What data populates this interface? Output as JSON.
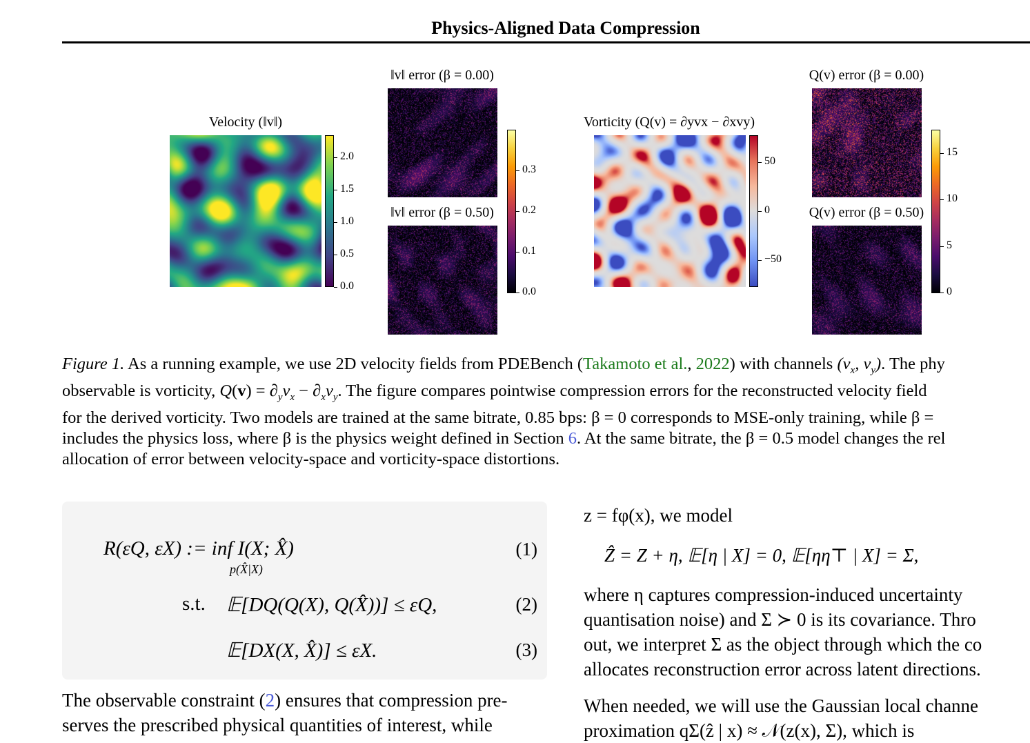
{
  "header": {
    "title": "Physics-Aligned Data Compression"
  },
  "figure": {
    "panels": {
      "velocity": {
        "title": "Velocity (‖v‖)",
        "colormap": "viridis",
        "ticks": [
          "2.0",
          "1.5",
          "1.0",
          "0.5",
          "0.0"
        ]
      },
      "v_err_0": {
        "title": "‖v‖ error (β = 0.00)",
        "colormap": "inferno"
      },
      "v_err_5": {
        "title": "‖v‖ error (β = 0.50)",
        "colormap": "inferno"
      },
      "v_err_ticks": [
        "0.3",
        "0.2",
        "0.1",
        "0.0"
      ],
      "vorticity": {
        "title": "Vorticity (Q(v) = ∂yvx − ∂xvy)",
        "colormap": "coolwarm",
        "ticks": [
          "50",
          "0",
          "−50"
        ]
      },
      "q_err_0": {
        "title": "Q(v) error (β = 0.00)",
        "colormap": "inferno"
      },
      "q_err_5": {
        "title": "Q(v) error (β = 0.50)",
        "colormap": "inferno"
      },
      "q_err_ticks": [
        "15",
        "10",
        "5",
        "0"
      ]
    },
    "colors": {
      "viridis_hi": "#fde725",
      "viridis_lo": "#440154",
      "inferno_hi": "#fcffa4",
      "inferno_lo": "#000004",
      "coolwarm_hi": "#b40426",
      "coolwarm_lo": "#3b4cc0"
    }
  },
  "caption": {
    "label": "Figure 1.",
    "lines": [
      " As a running example, we use 2D velocity fields from PDEBench (",
      "Takamoto et al.",
      ", ",
      "2022",
      ") with channels (v",
      "observable is vorticity, Q(v) = ∂",
      ". The figure compares pointwise compression errors for the reconstructed velocity field",
      "for the derived vorticity. Two models are trained at the same bitrate, 0.85 bps: β = 0 corresponds to MSE-only training, while β =",
      "includes the physics loss, where β is the physics weight defined in Section ",
      "6",
      ". At the same bitrate, the β = 0.5 model changes the rel",
      "allocation of error between velocity-space and vorticity-space distortions."
    ]
  },
  "equations": {
    "eq1": "R(εQ, εX) := inf I(X; X̂)",
    "eq1_sub": "p(X̂|X)",
    "eq2_prefix": "s.t.",
    "eq2": "𝔼[DQ(Q(X), Q(X̂))] ≤ εQ,",
    "eq3": "𝔼[DX(X, X̂)] ≤ εX.",
    "nums": [
      "(1)",
      "(2)",
      "(3)"
    ]
  },
  "body_left": {
    "line1a": "The observable constraint (",
    "line1ref": "2",
    "line1b": ") ensures that compression pre-",
    "line2": "serves the prescribed physical quantities of interest, while"
  },
  "body_right": {
    "line0": "z = fφ(x), we model",
    "eq": "Ẑ  =  Z + η,    𝔼[η | X] = 0,    𝔼[ηη⊤ | X] = Σ,",
    "p1": [
      "where  η  captures  compression-induced  uncertainty",
      "quantisation noise) and Σ ≻ 0 is its covariance. Thro",
      "out, we interpret Σ as the object through which the co",
      "allocates reconstruction error across latent directions."
    ],
    "p2": [
      "When needed, we will use the Gaussian local channe",
      "proximation  qΣ(ẑ | x)  ≈  𝒩(z(x), Σ),  which  is"
    ]
  }
}
